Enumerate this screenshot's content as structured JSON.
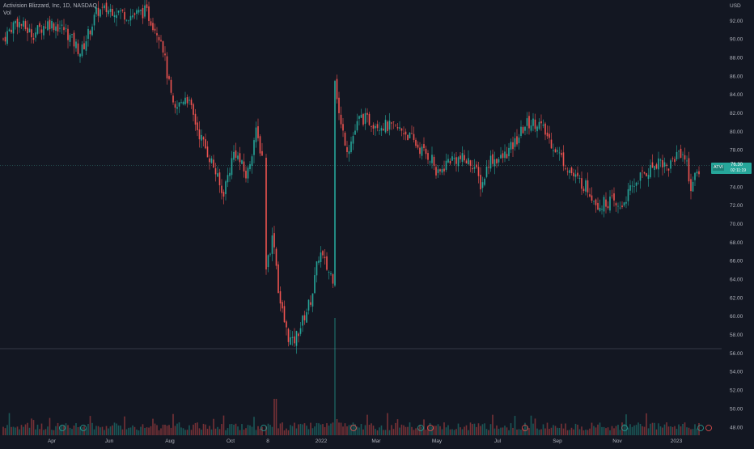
{
  "legend": {
    "title": "Activision Blizzard, Inc, 1D, NASDAQ",
    "volume_label": "Vol"
  },
  "price_axis": {
    "currency": "USD",
    "ticks": [
      "92.00",
      "90.00",
      "88.00",
      "86.00",
      "84.00",
      "82.00",
      "80.00",
      "78.00",
      "76.00",
      "74.00",
      "72.00",
      "70.00",
      "68.00",
      "66.00",
      "64.00",
      "62.00",
      "60.00",
      "58.00",
      "56.00",
      "54.00",
      "52.00",
      "50.00",
      "48.00"
    ]
  },
  "time_axis": {
    "ticks": [
      "Apr",
      "Jun",
      "Aug",
      "Oct",
      "8",
      "2022",
      "Mar",
      "May",
      "Jul",
      "Sep",
      "Nov",
      "2023"
    ]
  },
  "last_price": {
    "symbol": "ATVI",
    "value": "76.30",
    "countdown": "02:11:19"
  },
  "colors": {
    "background": "#131722",
    "up": "#26a69a",
    "down": "#ef5350",
    "grid": "#2a2e39",
    "text": "#b2b5be"
  },
  "chart_data": {
    "type": "candlestick",
    "symbol": "ATVI",
    "interval": "1D",
    "exchange": "NASDAQ",
    "ylim": [
      47,
      94
    ],
    "x_ticks": [
      "Apr",
      "Jun",
      "Aug",
      "Oct",
      "8",
      "2022",
      "Mar",
      "May",
      "Jul",
      "Sep",
      "Nov",
      "2023"
    ],
    "approx_closes": [
      {
        "x": "Apr",
        "close": 91
      },
      {
        "x": "Jun",
        "close": 93.5
      },
      {
        "x": "Aug",
        "close": 83
      },
      {
        "x": "Oct",
        "close": 74
      },
      {
        "x": "Oct end",
        "close": 78
      },
      {
        "x": "8 Nov",
        "close": 67
      },
      {
        "x": "Dec",
        "close": 57
      },
      {
        "x": "2022",
        "close": 66
      },
      {
        "x": "Jan 18",
        "close": 82
      },
      {
        "x": "Mar",
        "close": 81
      },
      {
        "x": "May",
        "close": 77
      },
      {
        "x": "May end",
        "close": 74
      },
      {
        "x": "Jul",
        "close": 77
      },
      {
        "x": "Jul end",
        "close": 81
      },
      {
        "x": "Sep",
        "close": 77
      },
      {
        "x": "Sep end",
        "close": 72
      },
      {
        "x": "Nov",
        "close": 72
      },
      {
        "x": "Nov end",
        "close": 77
      },
      {
        "x": "Dec",
        "close": 78
      },
      {
        "x": "2023",
        "close": 74
      },
      {
        "x": "last",
        "close": 76.3
      }
    ],
    "last_close": 76.3
  }
}
